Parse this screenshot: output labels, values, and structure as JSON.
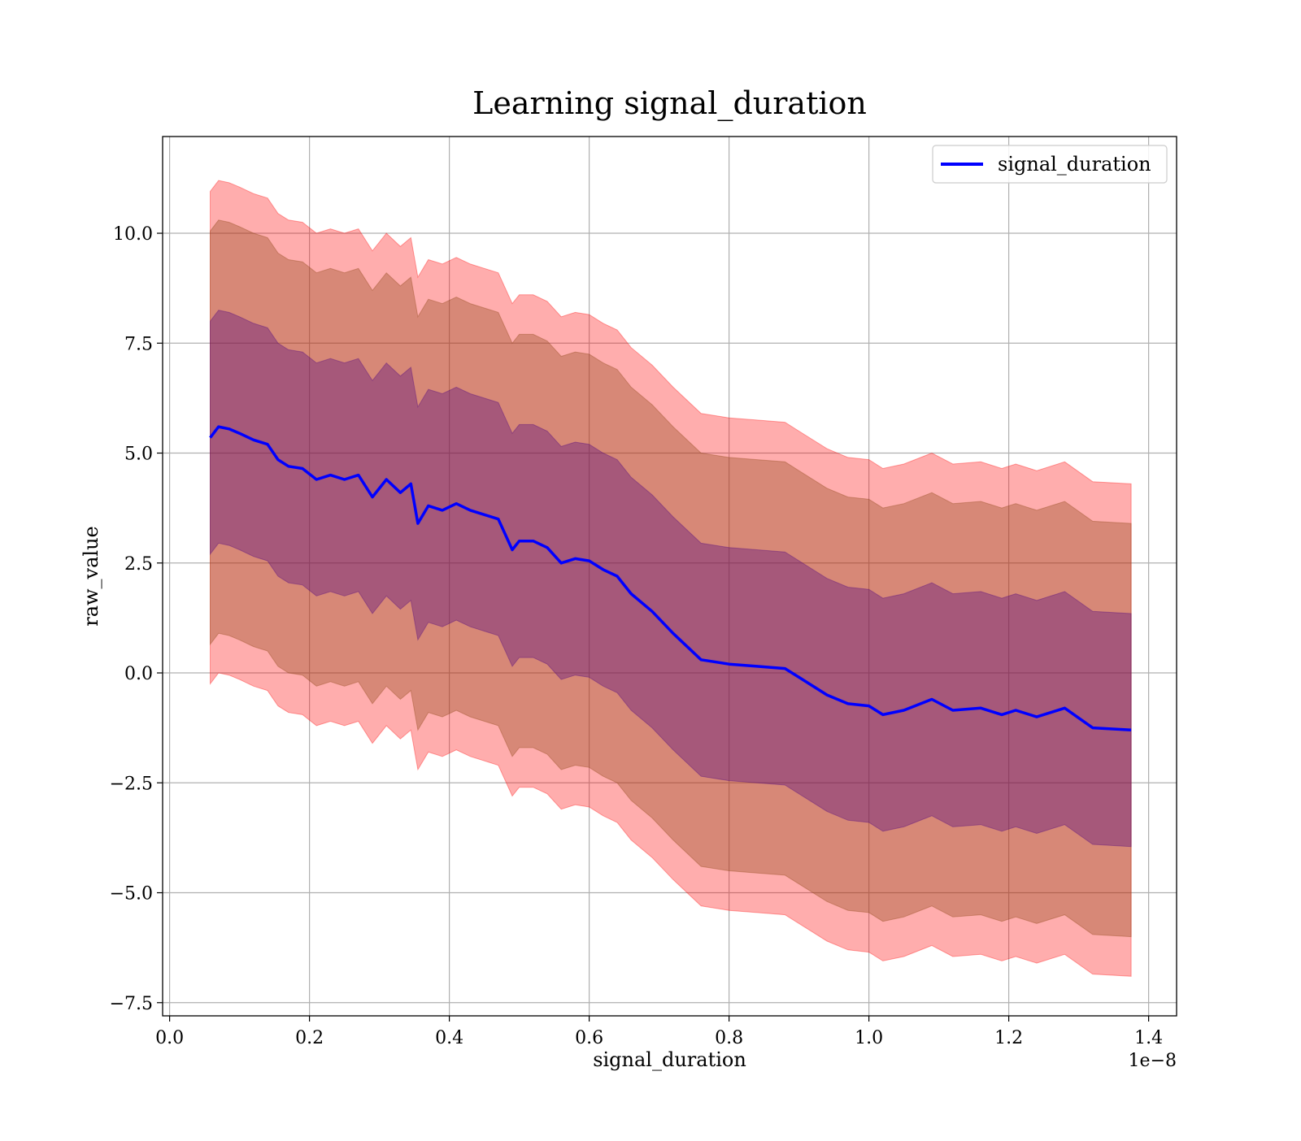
{
  "chart_data": {
    "type": "line",
    "title": "Learning signal_duration",
    "xlabel": "signal_duration",
    "ylabel": "raw_value",
    "x_offset_label": "1e−8",
    "xlim": [
      -0.01,
      1.44
    ],
    "ylim": [
      -7.8,
      12.2
    ],
    "x_ticks": [
      0.0,
      0.2,
      0.4,
      0.6,
      0.8,
      1.0,
      1.2,
      1.4
    ],
    "x_tick_labels": [
      "0.0",
      "0.2",
      "0.4",
      "0.6",
      "0.8",
      "1.0",
      "1.2",
      "1.4"
    ],
    "y_ticks": [
      -7.5,
      -5.0,
      -2.5,
      0.0,
      2.5,
      5.0,
      7.5,
      10.0
    ],
    "y_tick_labels": [
      "−7.5",
      "−5.0",
      "−2.5",
      "0.0",
      "2.5",
      "5.0",
      "7.5",
      "10.0"
    ],
    "grid": true,
    "legend_position": "top-right",
    "series": [
      {
        "name": "signal_duration",
        "color": "#0000ff",
        "x": [
          0.058,
          0.07,
          0.085,
          0.1,
          0.12,
          0.14,
          0.155,
          0.17,
          0.19,
          0.21,
          0.23,
          0.25,
          0.27,
          0.29,
          0.31,
          0.33,
          0.345,
          0.355,
          0.37,
          0.39,
          0.41,
          0.43,
          0.45,
          0.47,
          0.49,
          0.5,
          0.52,
          0.54,
          0.56,
          0.58,
          0.6,
          0.62,
          0.64,
          0.66,
          0.69,
          0.72,
          0.76,
          0.8,
          0.84,
          0.88,
          0.9,
          0.94,
          0.97,
          1.0,
          1.02,
          1.05,
          1.09,
          1.12,
          1.16,
          1.19,
          1.21,
          1.24,
          1.28,
          1.32,
          1.375
        ],
        "y": [
          5.35,
          5.6,
          5.55,
          5.45,
          5.3,
          5.2,
          4.85,
          4.7,
          4.65,
          4.4,
          4.5,
          4.4,
          4.5,
          4.0,
          4.4,
          4.1,
          4.3,
          3.4,
          3.8,
          3.7,
          3.85,
          3.7,
          3.6,
          3.5,
          2.8,
          3.0,
          3.0,
          2.85,
          2.5,
          2.6,
          2.55,
          2.35,
          2.2,
          1.8,
          1.4,
          0.9,
          0.3,
          0.2,
          0.15,
          0.1,
          -0.1,
          -0.5,
          -0.7,
          -0.75,
          -0.95,
          -0.85,
          -0.6,
          -0.85,
          -0.8,
          -0.95,
          -0.85,
          -1.0,
          -0.8,
          -1.25,
          -1.3
        ]
      }
    ],
    "bands": [
      {
        "color": "#ff0000",
        "opacity": 0.32,
        "offset_start": 5.6,
        "offset_end": 5.6
      },
      {
        "color": "#8b4513",
        "opacity": 0.35,
        "offset_start": 4.7,
        "offset_end": 4.7
      },
      {
        "color": "#4b0082",
        "opacity": 0.35,
        "offset_start": 2.65,
        "offset_end": 2.65
      }
    ]
  }
}
